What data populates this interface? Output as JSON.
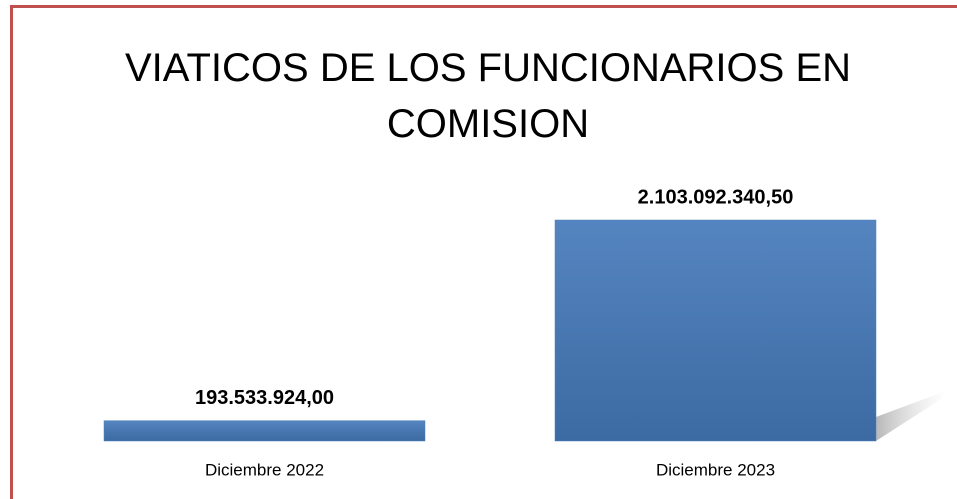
{
  "chart_data": {
    "type": "bar",
    "title": "VIATICOS DE LOS FUNCIONARIOS EN COMISION",
    "categories": [
      "Diciembre 2022",
      "Diciembre 2023"
    ],
    "values": [
      193533924.0,
      2103092340.5
    ],
    "value_labels": [
      "193.533.924,00",
      "2.103.092.340,50"
    ],
    "color": "#4f81bd"
  }
}
